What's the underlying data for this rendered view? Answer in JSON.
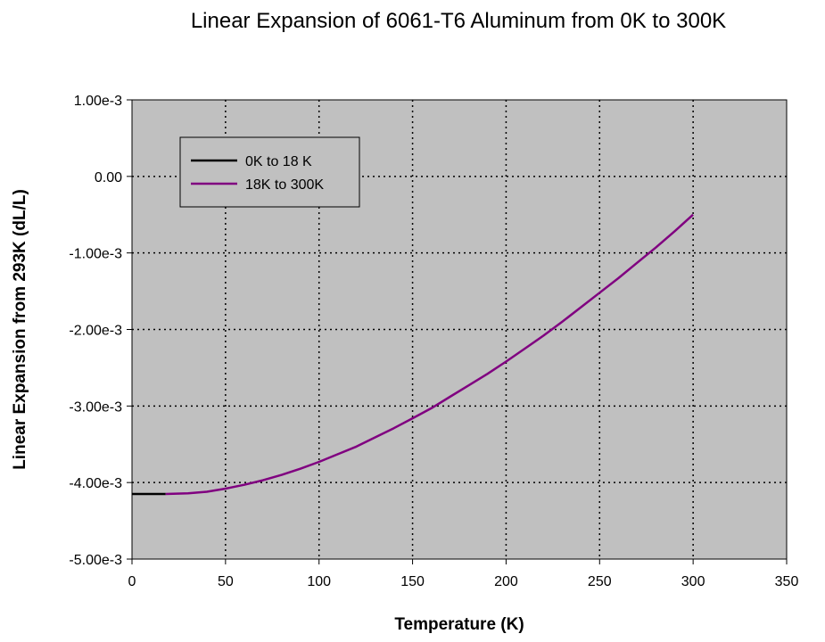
{
  "chart_data": {
    "type": "line",
    "title": "Linear Expansion of 6061-T6 Aluminum from 0K to 300K",
    "xlabel": "Temperature (K)",
    "ylabel": "Linear Expansion from 293K (dL/L)",
    "xlim": [
      0,
      350
    ],
    "ylim": [
      -0.005,
      0.001
    ],
    "x_ticks": [
      0,
      50,
      100,
      150,
      200,
      250,
      300,
      350
    ],
    "x_tick_labels": [
      "0",
      "50",
      "100",
      "150",
      "200",
      "250",
      "300",
      "350"
    ],
    "y_ticks": [
      0.001,
      0,
      -0.001,
      -0.002,
      -0.003,
      -0.004,
      -0.005
    ],
    "y_tick_labels": [
      "1.00e-3",
      "0.00",
      "-1.00e-3",
      "-2.00e-3",
      "-3.00e-3",
      "-4.00e-3",
      "-5.00e-3"
    ],
    "grid": true,
    "grid_style": "dotted",
    "plot_background": "#c0c0c0",
    "legend_position": "top-left",
    "series": [
      {
        "name": "0K to 18 K",
        "color": "#000000",
        "x": [
          0,
          6,
          12,
          18
        ],
        "y": [
          -0.00415,
          -0.00415,
          -0.00415,
          -0.00415
        ]
      },
      {
        "name": "18K to 300K",
        "color": "#800080",
        "x": [
          18,
          30,
          40,
          50,
          60,
          70,
          80,
          90,
          100,
          110,
          120,
          130,
          140,
          150,
          160,
          170,
          180,
          190,
          200,
          210,
          220,
          230,
          240,
          250,
          260,
          270,
          280,
          290,
          300
        ],
        "y": [
          -0.00415,
          -0.00414,
          -0.00412,
          -0.00408,
          -0.00403,
          -0.00397,
          -0.0039,
          -0.00382,
          -0.00373,
          -0.00363,
          -0.00353,
          -0.00341,
          -0.00329,
          -0.00316,
          -0.00303,
          -0.00288,
          -0.00273,
          -0.00258,
          -0.00242,
          -0.00225,
          -0.00208,
          -0.0019,
          -0.00171,
          -0.00152,
          -0.00133,
          -0.00113,
          -0.00093,
          -0.00072,
          -0.0005
        ]
      }
    ]
  }
}
